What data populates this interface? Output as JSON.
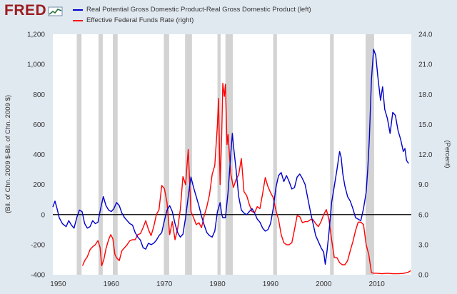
{
  "header": {
    "logo": "FRED",
    "logo_icon": "trend-line-icon"
  },
  "chart_data": {
    "type": "line",
    "title": "",
    "xlabel": "",
    "ylabel_left": "(Bil. of Chn. 2009 $-Bil. of Chn. 2009 $)",
    "ylabel_right": "(Percent)",
    "x_ticks": [
      "1950",
      "1960",
      "1970",
      "1980",
      "1990",
      "2000",
      "2010"
    ],
    "x_tick_years": [
      1950,
      1960,
      1970,
      1980,
      1990,
      2000,
      2010
    ],
    "xlim": [
      1949,
      2016.5
    ],
    "y_left_ticks": [
      "-400",
      "-200",
      "0",
      "200",
      "400",
      "600",
      "800",
      "1,000",
      "1,200"
    ],
    "y_left_range": [
      -400,
      1200
    ],
    "y_right_ticks": [
      "0.0",
      "3.0",
      "6.0",
      "9.0",
      "12.0",
      "15.0",
      "18.0",
      "21.0",
      "24.0"
    ],
    "y_right_range": [
      0,
      24
    ],
    "recessions": [
      [
        1953.5,
        1954.4
      ],
      [
        1957.6,
        1958.4
      ],
      [
        1960.3,
        1961.2
      ],
      [
        1969.9,
        1970.9
      ],
      [
        1973.9,
        1975.2
      ],
      [
        1980.0,
        1980.6
      ],
      [
        1981.5,
        1982.9
      ],
      [
        1990.5,
        1991.2
      ],
      [
        2001.2,
        2001.9
      ],
      [
        2007.9,
        2009.5
      ]
    ],
    "zero_line": 0,
    "series": [
      {
        "name": "Real Potential Gross Domestic Product-Real Gross Domestic Product (left)",
        "axis": "left",
        "color": "#0000cc",
        "points": [
          [
            1949,
            50
          ],
          [
            1949.4,
            90
          ],
          [
            1949.8,
            40
          ],
          [
            1950.2,
            -20
          ],
          [
            1950.8,
            -60
          ],
          [
            1951.5,
            -80
          ],
          [
            1952,
            -40
          ],
          [
            1952.5,
            -70
          ],
          [
            1953,
            -90
          ],
          [
            1953.5,
            -20
          ],
          [
            1954,
            30
          ],
          [
            1954.5,
            20
          ],
          [
            1955,
            -60
          ],
          [
            1955.5,
            -90
          ],
          [
            1956,
            -80
          ],
          [
            1956.5,
            -40
          ],
          [
            1957,
            -60
          ],
          [
            1957.5,
            -50
          ],
          [
            1958,
            40
          ],
          [
            1958.5,
            120
          ],
          [
            1959,
            60
          ],
          [
            1959.5,
            30
          ],
          [
            1960,
            20
          ],
          [
            1960.5,
            40
          ],
          [
            1961,
            80
          ],
          [
            1961.5,
            60
          ],
          [
            1962,
            10
          ],
          [
            1962.5,
            -20
          ],
          [
            1963,
            -40
          ],
          [
            1963.5,
            -60
          ],
          [
            1964,
            -70
          ],
          [
            1964.5,
            -120
          ],
          [
            1965,
            -150
          ],
          [
            1965.5,
            -170
          ],
          [
            1966,
            -220
          ],
          [
            1966.5,
            -230
          ],
          [
            1967,
            -190
          ],
          [
            1967.5,
            -200
          ],
          [
            1968,
            -190
          ],
          [
            1968.5,
            -170
          ],
          [
            1969,
            -140
          ],
          [
            1969.5,
            -120
          ],
          [
            1970,
            -40
          ],
          [
            1970.5,
            30
          ],
          [
            1971,
            60
          ],
          [
            1971.5,
            20
          ],
          [
            1972,
            -60
          ],
          [
            1972.5,
            -120
          ],
          [
            1973,
            -150
          ],
          [
            1973.5,
            -130
          ],
          [
            1974,
            -20
          ],
          [
            1974.5,
            120
          ],
          [
            1975,
            250
          ],
          [
            1975.5,
            180
          ],
          [
            1976,
            120
          ],
          [
            1976.5,
            60
          ],
          [
            1977,
            -10
          ],
          [
            1977.5,
            -70
          ],
          [
            1978,
            -120
          ],
          [
            1978.5,
            -140
          ],
          [
            1979,
            -150
          ],
          [
            1979.5,
            -110
          ],
          [
            1980,
            20
          ],
          [
            1980.5,
            80
          ],
          [
            1980.8,
            0
          ],
          [
            1981,
            -20
          ],
          [
            1981.5,
            -20
          ],
          [
            1982,
            150
          ],
          [
            1982.5,
            400
          ],
          [
            1982.8,
            540
          ],
          [
            1983,
            460
          ],
          [
            1983.5,
            300
          ],
          [
            1984,
            120
          ],
          [
            1984.5,
            30
          ],
          [
            1985,
            10
          ],
          [
            1985.5,
            0
          ],
          [
            1986,
            20
          ],
          [
            1986.5,
            40
          ],
          [
            1987,
            10
          ],
          [
            1987.5,
            -30
          ],
          [
            1988,
            -50
          ],
          [
            1988.5,
            -90
          ],
          [
            1989,
            -110
          ],
          [
            1989.5,
            -100
          ],
          [
            1990,
            -60
          ],
          [
            1990.5,
            40
          ],
          [
            1991,
            180
          ],
          [
            1991.5,
            260
          ],
          [
            1992,
            280
          ],
          [
            1992.5,
            220
          ],
          [
            1993,
            260
          ],
          [
            1993.5,
            220
          ],
          [
            1994,
            170
          ],
          [
            1994.5,
            180
          ],
          [
            1995,
            250
          ],
          [
            1995.5,
            270
          ],
          [
            1996,
            240
          ],
          [
            1996.5,
            200
          ],
          [
            1997,
            110
          ],
          [
            1997.5,
            20
          ],
          [
            1998,
            -60
          ],
          [
            1998.5,
            -140
          ],
          [
            1999,
            -180
          ],
          [
            1999.5,
            -220
          ],
          [
            2000,
            -250
          ],
          [
            2000.3,
            -330
          ],
          [
            2000.6,
            -250
          ],
          [
            2001,
            -120
          ],
          [
            2001.5,
            80
          ],
          [
            2002,
            190
          ],
          [
            2002.5,
            300
          ],
          [
            2003,
            420
          ],
          [
            2003.3,
            380
          ],
          [
            2003.6,
            270
          ],
          [
            2004,
            190
          ],
          [
            2004.5,
            120
          ],
          [
            2005,
            90
          ],
          [
            2005.5,
            40
          ],
          [
            2006,
            -20
          ],
          [
            2006.5,
            -30
          ],
          [
            2007,
            -40
          ],
          [
            2007.5,
            40
          ],
          [
            2008,
            150
          ],
          [
            2008.3,
            300
          ],
          [
            2008.6,
            500
          ],
          [
            2009,
            900
          ],
          [
            2009.4,
            1100
          ],
          [
            2009.8,
            1060
          ],
          [
            2010.2,
            920
          ],
          [
            2010.7,
            760
          ],
          [
            2011.1,
            850
          ],
          [
            2011.5,
            700
          ],
          [
            2012,
            640
          ],
          [
            2012.5,
            540
          ],
          [
            2013,
            680
          ],
          [
            2013.5,
            660
          ],
          [
            2014,
            560
          ],
          [
            2014.5,
            500
          ],
          [
            2015,
            420
          ],
          [
            2015.3,
            440
          ],
          [
            2015.6,
            360
          ],
          [
            2016,
            340
          ]
        ]
      },
      {
        "name": "Effective Federal Funds Rate (right)",
        "axis": "right",
        "color": "#ff0000",
        "points": [
          [
            1954.6,
            0.9
          ],
          [
            1955,
            1.4
          ],
          [
            1955.5,
            1.8
          ],
          [
            1956,
            2.5
          ],
          [
            1956.5,
            2.8
          ],
          [
            1957,
            3.0
          ],
          [
            1957.5,
            3.4
          ],
          [
            1957.9,
            2.7
          ],
          [
            1958.2,
            0.9
          ],
          [
            1958.6,
            1.5
          ],
          [
            1959,
            2.6
          ],
          [
            1959.5,
            3.5
          ],
          [
            1959.9,
            4.0
          ],
          [
            1960.3,
            3.6
          ],
          [
            1960.7,
            2.0
          ],
          [
            1961,
            1.7
          ],
          [
            1961.5,
            1.4
          ],
          [
            1962,
            2.4
          ],
          [
            1962.5,
            2.7
          ],
          [
            1963,
            3.0
          ],
          [
            1963.5,
            3.4
          ],
          [
            1964,
            3.5
          ],
          [
            1964.5,
            3.5
          ],
          [
            1965,
            4.0
          ],
          [
            1965.5,
            4.1
          ],
          [
            1966,
            4.7
          ],
          [
            1966.5,
            5.4
          ],
          [
            1967,
            4.5
          ],
          [
            1967.5,
            3.9
          ],
          [
            1968,
            4.8
          ],
          [
            1968.5,
            6.0
          ],
          [
            1969,
            6.5
          ],
          [
            1969.5,
            8.9
          ],
          [
            1970,
            8.6
          ],
          [
            1970.5,
            7.2
          ],
          [
            1971,
            4.0
          ],
          [
            1971.5,
            5.3
          ],
          [
            1972,
            3.5
          ],
          [
            1972.5,
            4.6
          ],
          [
            1973,
            6.5
          ],
          [
            1973.5,
            9.8
          ],
          [
            1974,
            9.0
          ],
          [
            1974.5,
            12.5
          ],
          [
            1975,
            6.3
          ],
          [
            1975.5,
            5.7
          ],
          [
            1976,
            5.0
          ],
          [
            1976.5,
            5.2
          ],
          [
            1977,
            4.7
          ],
          [
            1977.5,
            5.9
          ],
          [
            1978,
            6.8
          ],
          [
            1978.5,
            8.0
          ],
          [
            1979,
            10.0
          ],
          [
            1979.5,
            10.9
          ],
          [
            1980,
            15.0
          ],
          [
            1980.2,
            17.6
          ],
          [
            1980.5,
            9.0
          ],
          [
            1980.8,
            14.0
          ],
          [
            1981,
            19.1
          ],
          [
            1981.3,
            17.8
          ],
          [
            1981.5,
            19.0
          ],
          [
            1981.8,
            13.0
          ],
          [
            1982,
            14.0
          ],
          [
            1982.5,
            10.1
          ],
          [
            1983,
            8.7
          ],
          [
            1983.5,
            9.5
          ],
          [
            1984,
            10.0
          ],
          [
            1984.5,
            11.6
          ],
          [
            1985,
            8.3
          ],
          [
            1985.5,
            7.9
          ],
          [
            1986,
            7.0
          ],
          [
            1986.5,
            6.3
          ],
          [
            1987,
            6.2
          ],
          [
            1987.5,
            6.8
          ],
          [
            1988,
            6.6
          ],
          [
            1988.5,
            8.1
          ],
          [
            1989,
            9.7
          ],
          [
            1989.5,
            8.8
          ],
          [
            1990,
            8.2
          ],
          [
            1990.5,
            7.7
          ],
          [
            1991,
            6.4
          ],
          [
            1991.5,
            5.5
          ],
          [
            1992,
            4.0
          ],
          [
            1992.5,
            3.2
          ],
          [
            1993,
            3.0
          ],
          [
            1993.5,
            3.0
          ],
          [
            1994,
            3.2
          ],
          [
            1994.5,
            4.5
          ],
          [
            1995,
            5.9
          ],
          [
            1995.5,
            5.8
          ],
          [
            1996,
            5.2
          ],
          [
            1996.5,
            5.3
          ],
          [
            1997,
            5.3
          ],
          [
            1997.5,
            5.5
          ],
          [
            1998,
            5.5
          ],
          [
            1998.5,
            5.1
          ],
          [
            1999,
            4.8
          ],
          [
            1999.5,
            5.3
          ],
          [
            2000,
            6.0
          ],
          [
            2000.5,
            6.5
          ],
          [
            2001,
            5.5
          ],
          [
            2001.5,
            3.5
          ],
          [
            2002,
            1.7
          ],
          [
            2002.5,
            1.7
          ],
          [
            2003,
            1.2
          ],
          [
            2003.5,
            1.0
          ],
          [
            2004,
            1.0
          ],
          [
            2004.5,
            1.4
          ],
          [
            2005,
            2.4
          ],
          [
            2005.5,
            3.3
          ],
          [
            2006,
            4.4
          ],
          [
            2006.5,
            5.25
          ],
          [
            2007,
            5.25
          ],
          [
            2007.5,
            5.0
          ],
          [
            2008,
            3.0
          ],
          [
            2008.5,
            2.0
          ],
          [
            2009,
            0.2
          ],
          [
            2009.5,
            0.15
          ],
          [
            2010,
            0.15
          ],
          [
            2011,
            0.1
          ],
          [
            2012,
            0.15
          ],
          [
            2013,
            0.1
          ],
          [
            2014,
            0.1
          ],
          [
            2015,
            0.13
          ],
          [
            2015.9,
            0.25
          ],
          [
            2016.4,
            0.4
          ]
        ]
      }
    ]
  }
}
